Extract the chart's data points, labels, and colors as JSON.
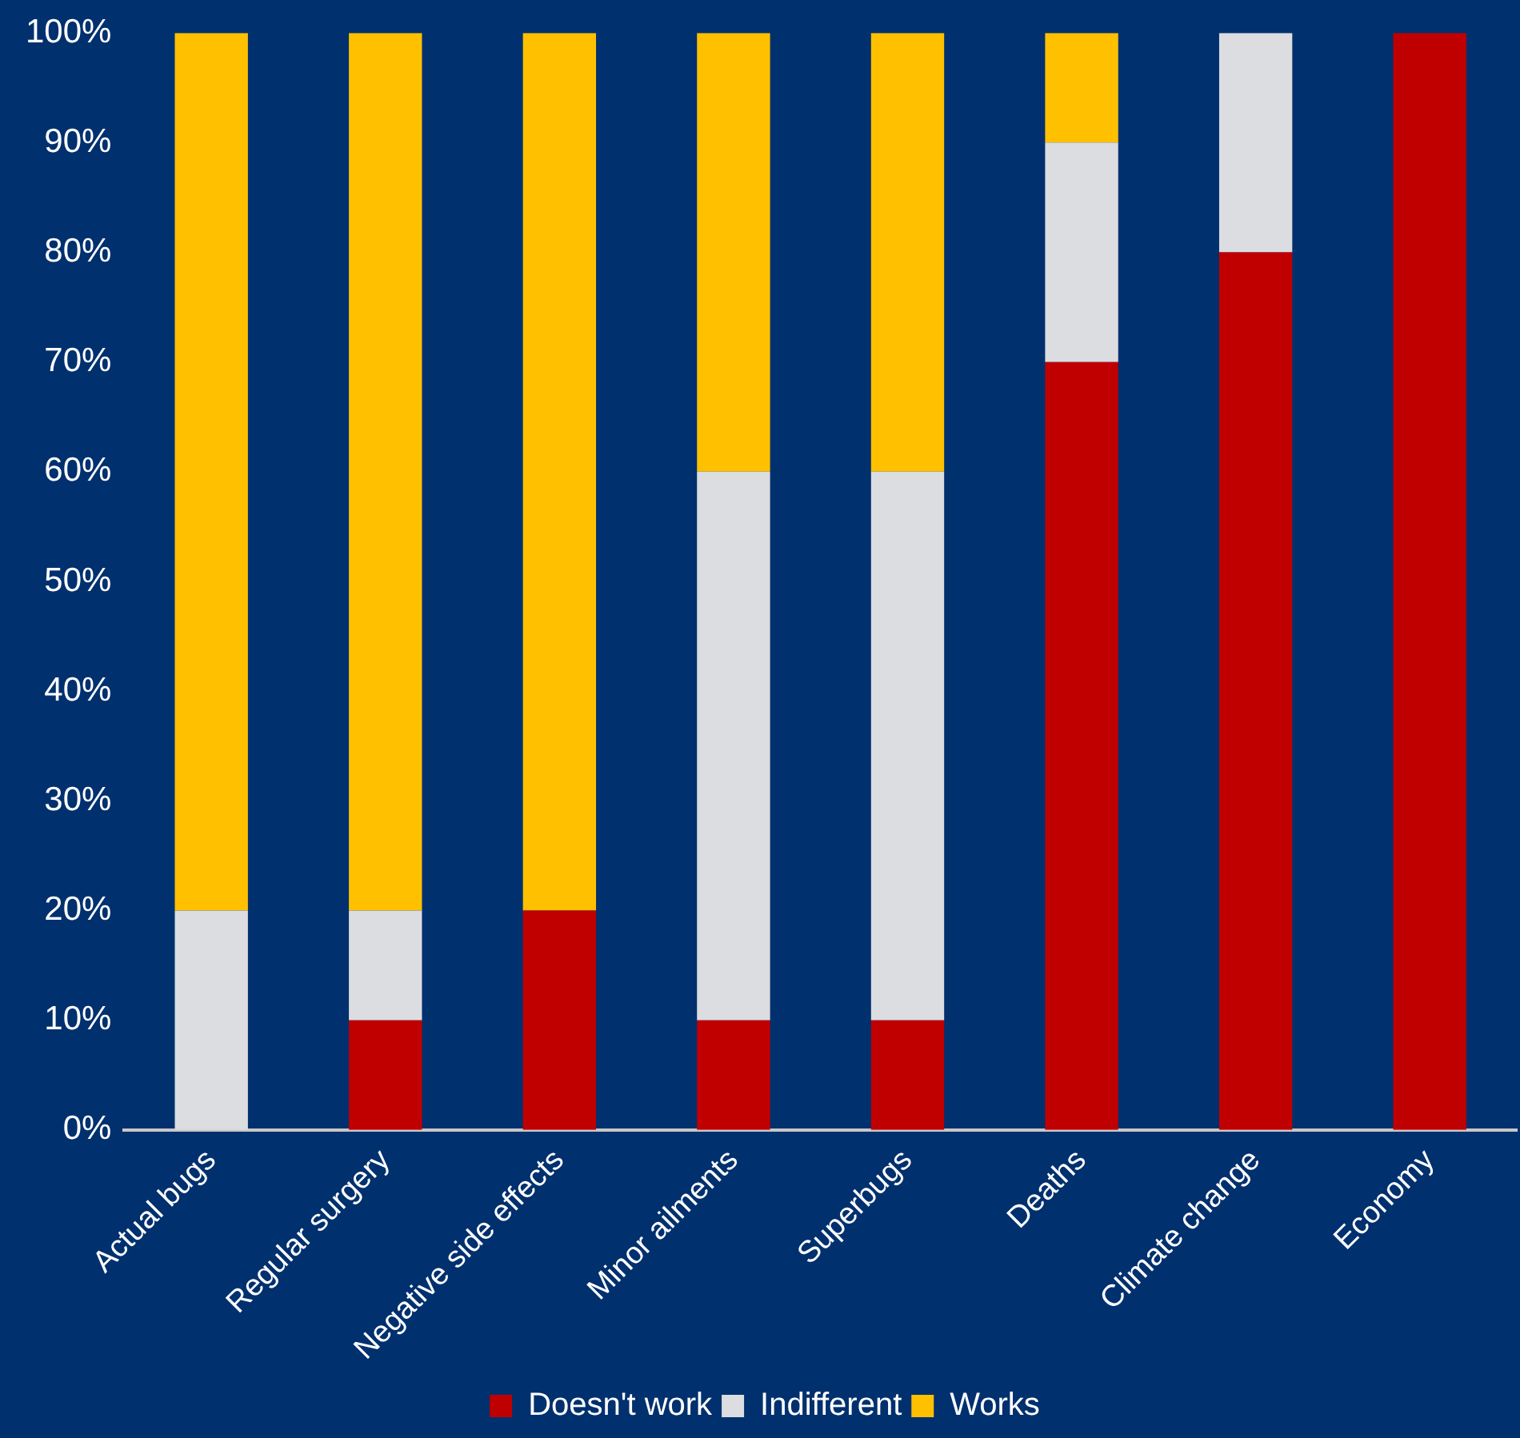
{
  "chart_data": {
    "type": "bar",
    "stacked": true,
    "categories": [
      "Actual bugs",
      "Regular surgery",
      "Negative side effects",
      "Minor ailments",
      "Superbugs",
      "Deaths",
      "Climate change",
      "Economy"
    ],
    "series": [
      {
        "name": "Doesn't work",
        "color": "#c00000",
        "values": [
          0,
          10,
          20,
          10,
          10,
          70,
          80,
          100
        ]
      },
      {
        "name": "Indifferent",
        "color": "#dcdde0",
        "values": [
          20,
          10,
          0,
          50,
          50,
          20,
          20,
          0
        ]
      },
      {
        "name": "Works",
        "color": "#ffc000",
        "values": [
          80,
          80,
          80,
          40,
          40,
          10,
          0,
          0
        ]
      }
    ],
    "ylim": [
      0,
      100
    ],
    "yticks": [
      {
        "value": 0,
        "label": "0%"
      },
      {
        "value": 10,
        "label": "10%"
      },
      {
        "value": 20,
        "label": "20%"
      },
      {
        "value": 30,
        "label": "30%"
      },
      {
        "value": 40,
        "label": "40%"
      },
      {
        "value": 50,
        "label": "50%"
      },
      {
        "value": 60,
        "label": "60%"
      },
      {
        "value": 70,
        "label": "70%"
      },
      {
        "value": 80,
        "label": "80%"
      },
      {
        "value": 90,
        "label": "90%"
      },
      {
        "value": 100,
        "label": "100%"
      }
    ],
    "grid": false,
    "legend": "bottom"
  }
}
